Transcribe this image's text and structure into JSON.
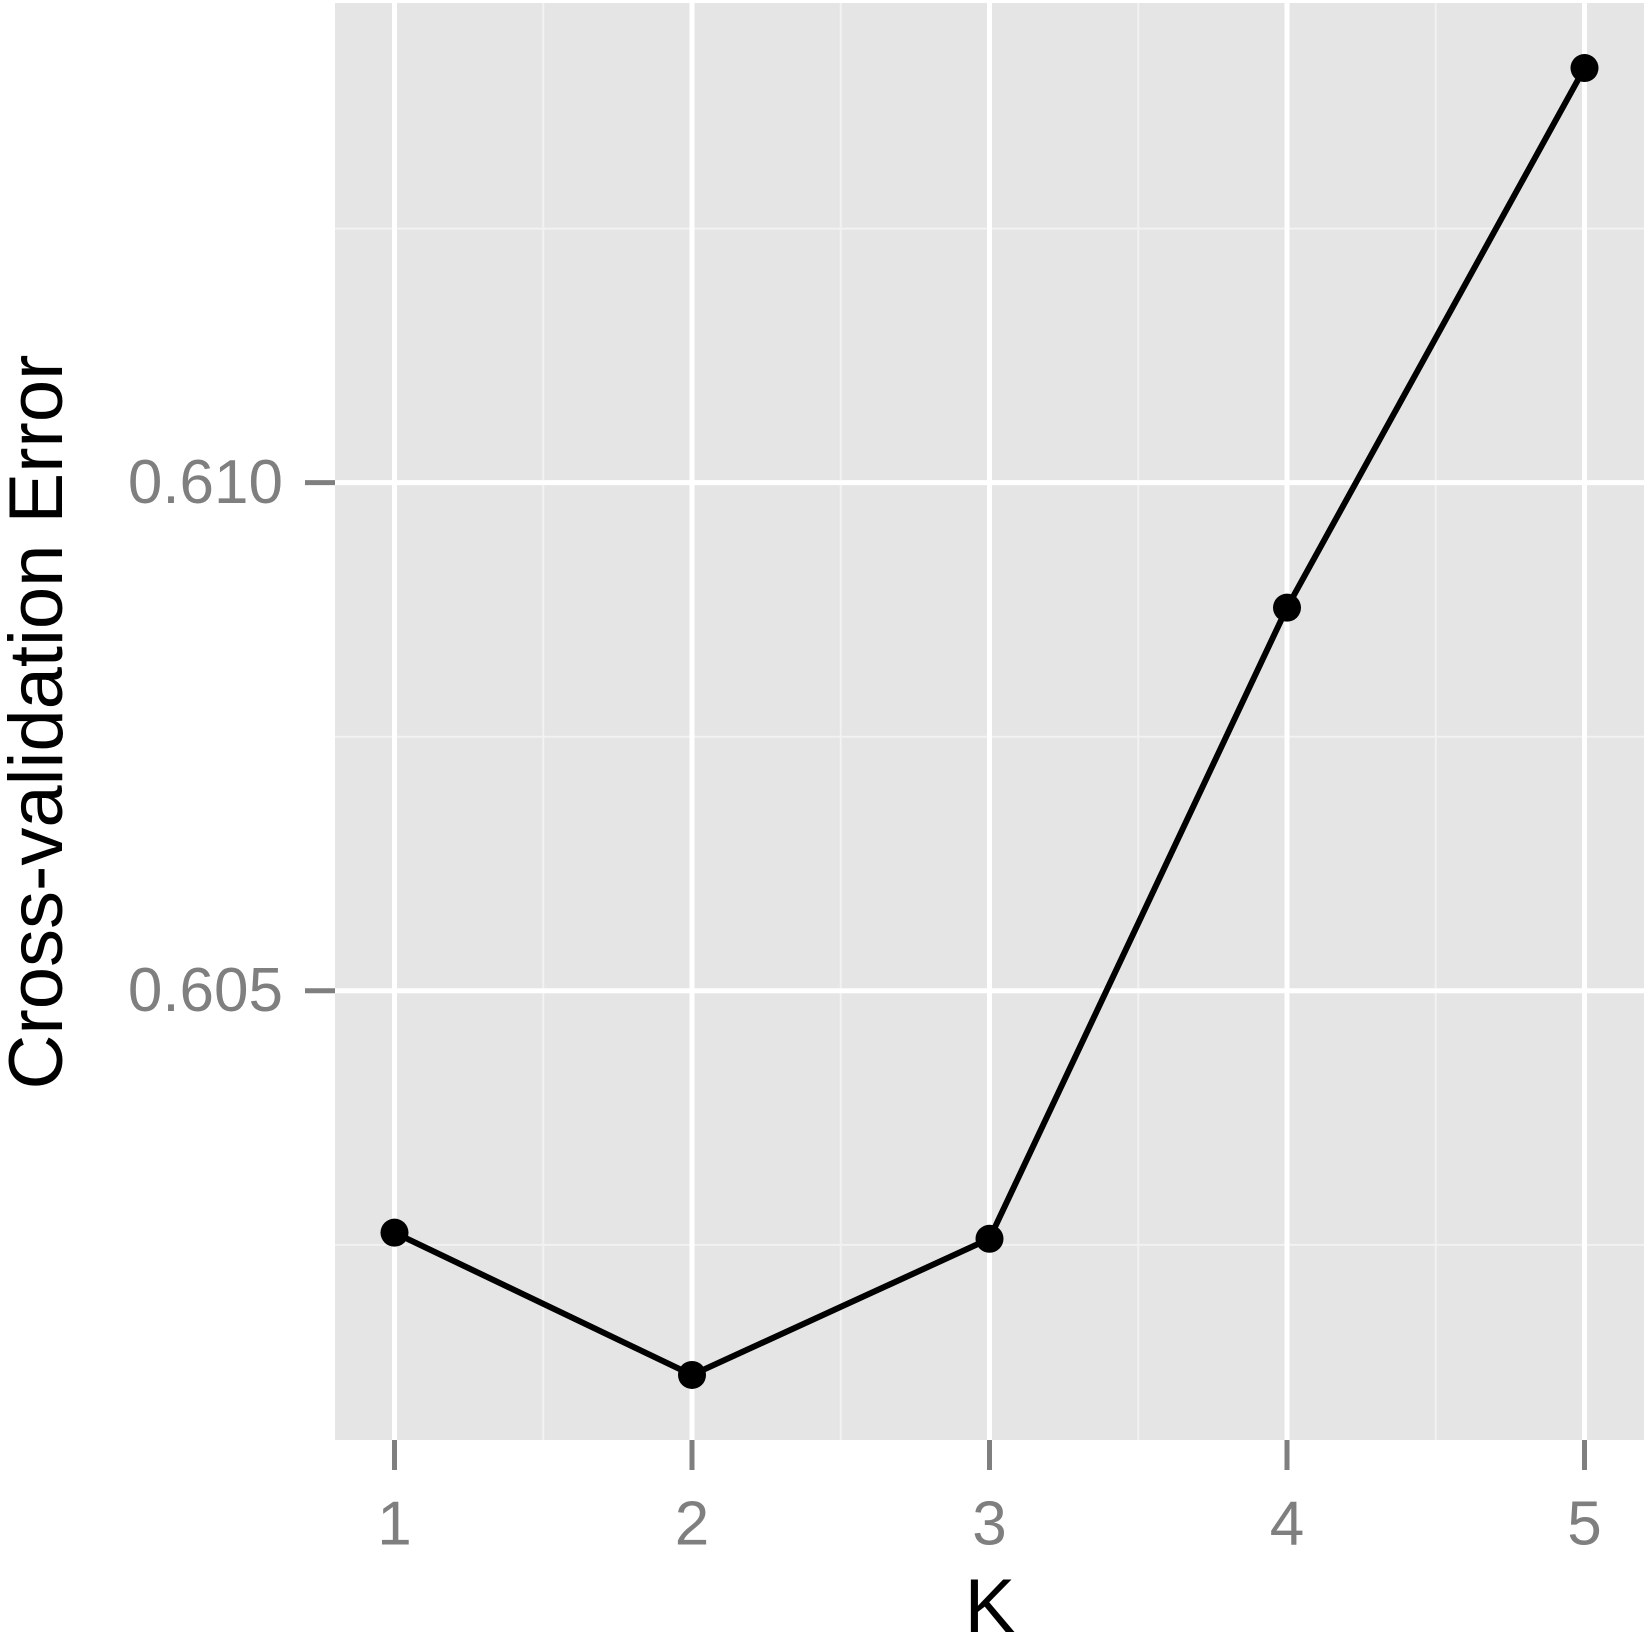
{
  "chart_data": {
    "type": "line",
    "x_label": "K",
    "y_label": "Cross-validation Error",
    "x": [
      1,
      2,
      3,
      4,
      5
    ],
    "series": [
      {
        "color": "#000000",
        "values": [
          0.60262,
          0.60122,
          0.60256,
          0.60877,
          0.61408
        ]
      }
    ],
    "xlim": [
      0.8,
      5.2
    ],
    "ylim": [
      0.60058,
      0.61472
    ],
    "xticks": [
      1,
      2,
      3,
      4,
      5
    ],
    "yticks": [
      0.605,
      {
        "value": 0.61,
        "label": "0.610"
      }
    ],
    "x_minor_ticks": [
      1.5,
      2.5,
      3.5,
      4.5
    ],
    "y_minor_ticks": [
      0.6025,
      0.6075,
      0.6125
    ],
    "grid": true,
    "panel_color": "#e5e5e5",
    "markers": true
  }
}
